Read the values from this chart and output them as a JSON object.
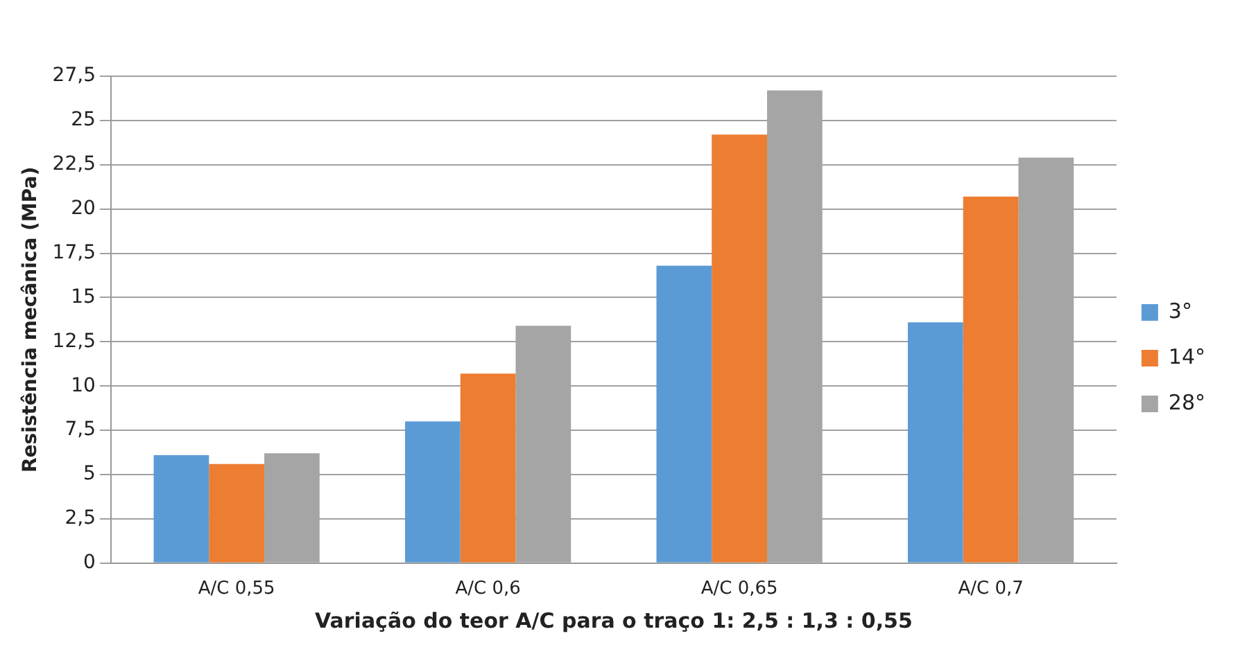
{
  "chart_data": {
    "type": "bar",
    "xlabel": "Variação do teor A/C para o traço 1: 2,5 : 1,3 : 0,55",
    "ylabel": "Resistência mecânica (MPa)",
    "categories": [
      "A/C 0,55",
      "A/C 0,6",
      "A/C 0,65",
      "A/C 0,7"
    ],
    "series": [
      {
        "name": "3°",
        "color": "#5b9bd5",
        "values": [
          6.1,
          8.0,
          16.8,
          13.6
        ]
      },
      {
        "name": "14°",
        "color": "#ed7d31",
        "values": [
          5.6,
          10.7,
          24.2,
          20.7
        ]
      },
      {
        "name": "28°",
        "color": "#a5a5a5",
        "values": [
          6.2,
          13.4,
          26.7,
          22.9
        ]
      }
    ],
    "ylim": [
      0,
      27.5
    ],
    "yticks": [
      {
        "value": 0,
        "label": "0"
      },
      {
        "value": 2.5,
        "label": "2,5"
      },
      {
        "value": 5,
        "label": "5"
      },
      {
        "value": 7.5,
        "label": "7,5"
      },
      {
        "value": 10,
        "label": "10"
      },
      {
        "value": 12.5,
        "label": "12,5"
      },
      {
        "value": 15,
        "label": "15"
      },
      {
        "value": 17.5,
        "label": "17,5"
      },
      {
        "value": 20,
        "label": "20"
      },
      {
        "value": 22.5,
        "label": "22,5"
      },
      {
        "value": 25,
        "label": "25"
      },
      {
        "value": 27.5,
        "label": "27,5"
      }
    ],
    "grid": "y",
    "legend": "right"
  }
}
